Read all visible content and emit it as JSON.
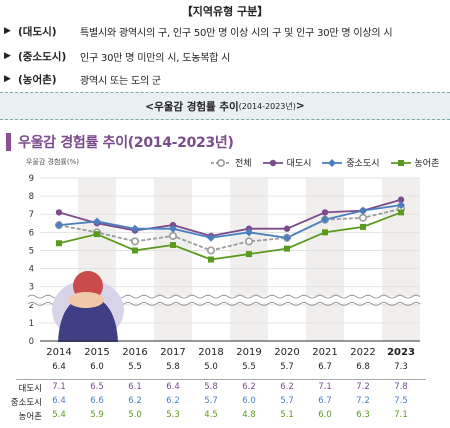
{
  "doc": {
    "title": "【지역유형 구분】",
    "rows": [
      {
        "label": "(대도시)",
        "desc": "특별시와 광역시의 구, 인구 50만 명 이상 시의 구 및 인구 30만 명 이상의 시"
      },
      {
        "label": "(중소도시)",
        "desc": "인구 30만 명 미만의 시, 도농복합 시"
      },
      {
        "label": "(농어촌)",
        "desc": "광역시 또는 도의 군"
      }
    ]
  },
  "banner": {
    "main": "<우울감 경험률 추이",
    "sub": "(2014-2023년)",
    "end": ">"
  },
  "chart_data": {
    "type": "line",
    "title": "우울감 경험률 추이(2014-2023년)",
    "ylabel": "우울감 경험률(%)",
    "ylim": [
      0,
      9
    ],
    "yticks": [
      "0",
      "1",
      "2",
      "3",
      "4",
      "5",
      "6",
      "7",
      "8",
      "9"
    ],
    "axis_break": true,
    "categories": [
      "2014",
      "2015",
      "2016",
      "2017",
      "2018",
      "2019",
      "2020",
      "2021",
      "2022",
      "2023"
    ],
    "series": [
      {
        "name": "전체",
        "color": "#9b9b9b",
        "marker": "circle-open",
        "values": [
          6.4,
          6.0,
          5.5,
          5.8,
          5.0,
          5.5,
          5.7,
          6.7,
          6.8,
          7.3
        ],
        "labels": [
          "6.4",
          "6.0",
          "5.5",
          "5.8",
          "5.0",
          "5.5",
          "5.7",
          "6.7",
          "6.8",
          "7.3"
        ]
      },
      {
        "name": "대도시",
        "color": "#7b4b8c",
        "marker": "circle",
        "values": [
          7.1,
          6.5,
          6.1,
          6.4,
          5.8,
          6.2,
          6.2,
          7.1,
          7.2,
          7.8
        ],
        "labels": [
          "7.1",
          "6.5",
          "6.1",
          "6.4",
          "5.8",
          "6.2",
          "6.2",
          "7.1",
          "7.2",
          "7.8"
        ]
      },
      {
        "name": "중소도시",
        "color": "#4a7fc1",
        "marker": "diamond",
        "values": [
          6.4,
          6.6,
          6.2,
          6.2,
          5.7,
          6.0,
          5.7,
          6.7,
          7.2,
          7.5
        ],
        "labels": [
          "6.4",
          "6.6",
          "6.2",
          "6.2",
          "5.7",
          "6.0",
          "5.7",
          "6.7",
          "7.2",
          "7.5"
        ]
      },
      {
        "name": "농어촌",
        "color": "#5a9a1e",
        "marker": "square",
        "values": [
          5.4,
          5.9,
          5.0,
          5.3,
          4.5,
          4.8,
          5.1,
          6.0,
          6.3,
          7.1
        ],
        "labels": [
          "5.4",
          "5.9",
          "5.0",
          "5.3",
          "4.5",
          "4.8",
          "5.1",
          "6.0",
          "6.3",
          "7.1"
        ]
      }
    ],
    "legend_position": "top-right",
    "table_rows": [
      "대도시",
      "중소도시",
      "농어촌"
    ]
  }
}
